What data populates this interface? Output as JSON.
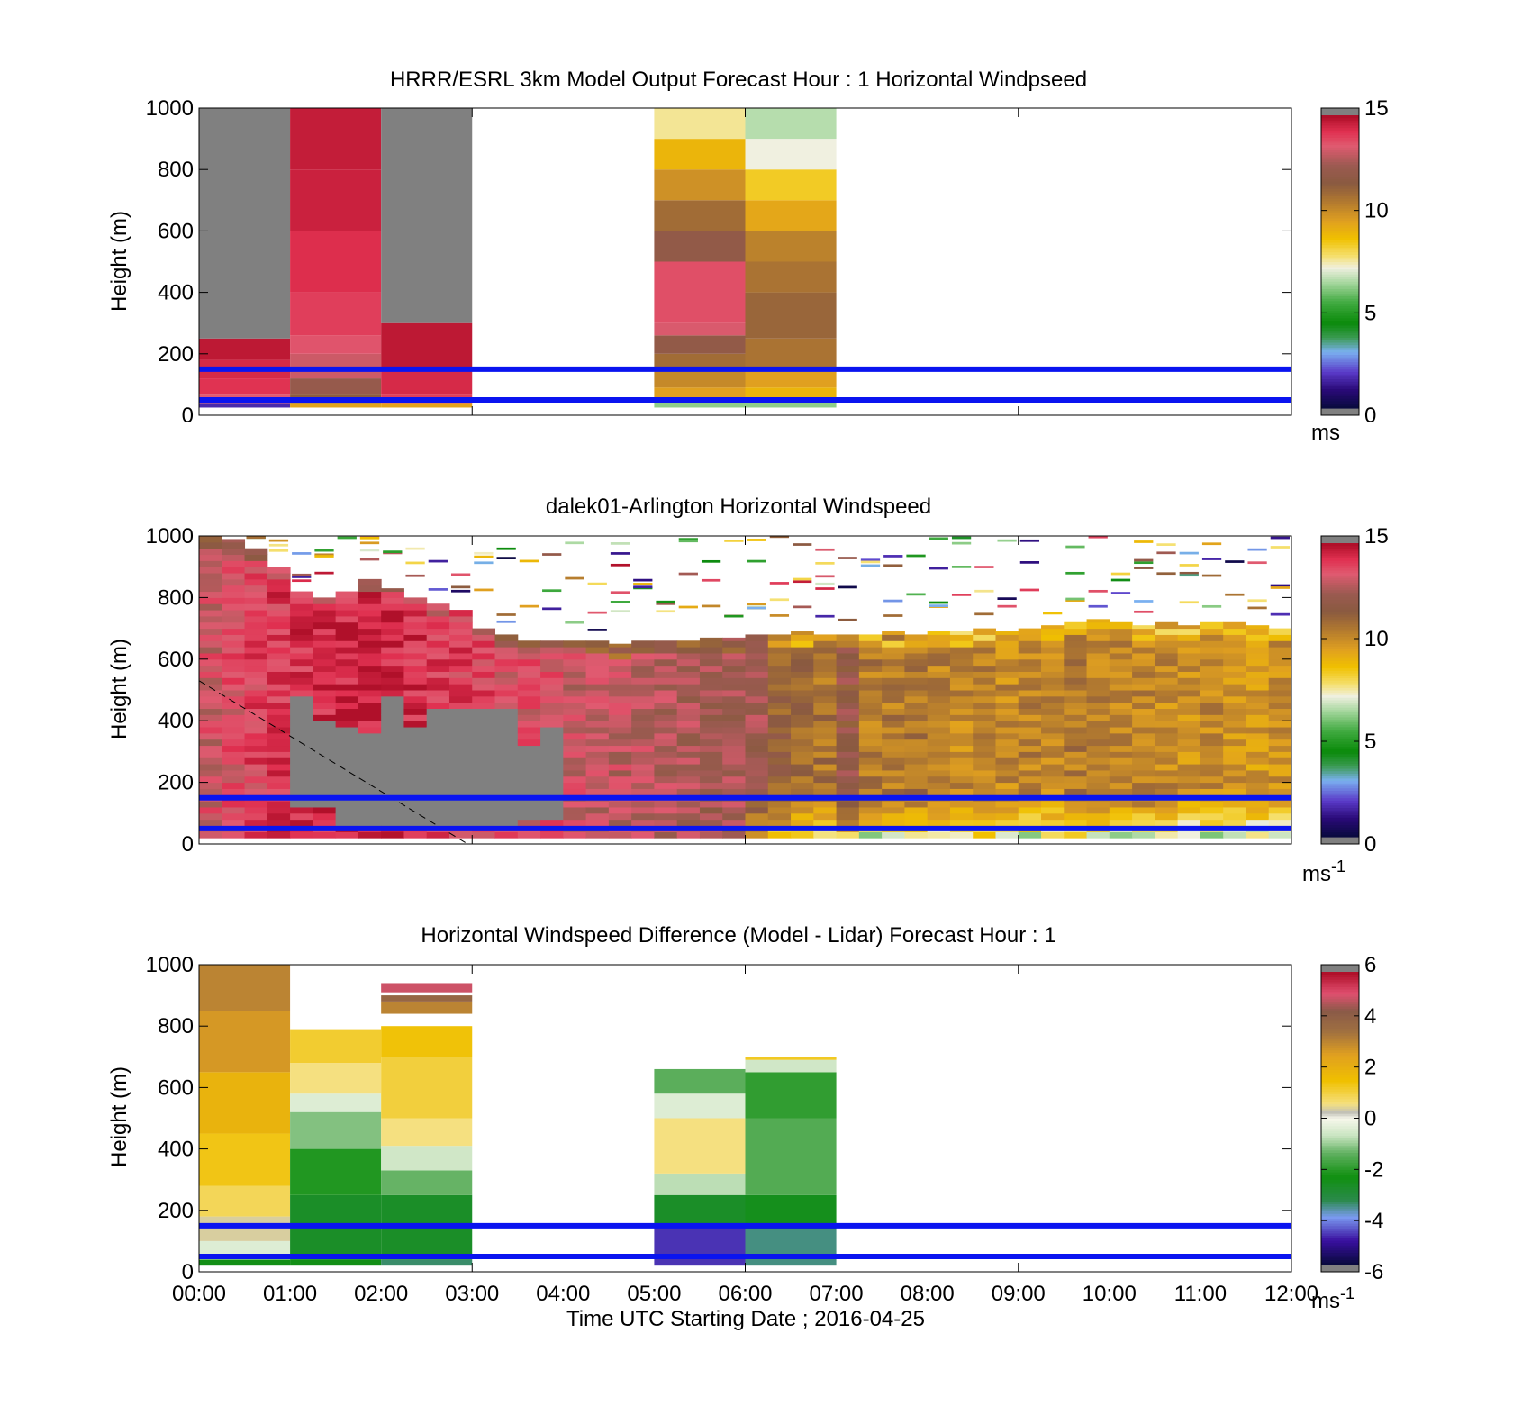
{
  "figure": {
    "x_tick_labels": [
      "00:00",
      "01:00",
      "02:00",
      "03:00",
      "04:00",
      "05:00",
      "06:00",
      "07:00",
      "08:00",
      "09:00",
      "10:00",
      "11:00",
      "12:00"
    ],
    "xlabel": "Time UTC  Starting Date ; 2016-04-25"
  },
  "chart_data": [
    {
      "type": "heatmap",
      "title": "HRRR/ESRL 3km Model Output   Forecast Hour : 1 Horizontal Windpseed",
      "xlabel": "",
      "ylabel": "Height (m)",
      "xlim": [
        0,
        12
      ],
      "ylim": [
        0,
        1000
      ],
      "y_ticks": [
        "0",
        "200",
        "400",
        "600",
        "800",
        "1000"
      ],
      "colorbar": {
        "min": 0,
        "max": 15,
        "ticks": [
          "0",
          "5",
          "10",
          "15"
        ],
        "unit": "ms"
      },
      "reference_lines_m": [
        50,
        150
      ],
      "columns": [
        {
          "x_start_h": 0,
          "x_end_h": 1,
          "segments": [
            {
              "from": 25,
              "to": 40,
              "value": 1.5
            },
            {
              "from": 40,
              "to": 70,
              "value": 13.5
            },
            {
              "from": 70,
              "to": 120,
              "value": 14.2
            },
            {
              "from": 120,
              "to": 180,
              "value": 14.4
            },
            {
              "from": 180,
              "to": 250,
              "value": 14.8
            },
            {
              "from": 250,
              "to": 1000,
              "value": "missing"
            }
          ]
        },
        {
          "x_start_h": 1,
          "x_end_h": 2,
          "segments": [
            {
              "from": 25,
              "to": 40,
              "value": 9.5
            },
            {
              "from": 40,
              "to": 70,
              "value": 11.5
            },
            {
              "from": 70,
              "to": 120,
              "value": 12.2
            },
            {
              "from": 120,
              "to": 200,
              "value": 13.2
            },
            {
              "from": 200,
              "to": 260,
              "value": 13.6
            },
            {
              "from": 260,
              "to": 400,
              "value": 14.0
            },
            {
              "from": 400,
              "to": 600,
              "value": 14.3
            },
            {
              "from": 600,
              "to": 800,
              "value": 14.6
            },
            {
              "from": 800,
              "to": 1000,
              "value": 14.7
            }
          ]
        },
        {
          "x_start_h": 2,
          "x_end_h": 3,
          "segments": [
            {
              "from": 25,
              "to": 40,
              "value": 9.5
            },
            {
              "from": 40,
              "to": 70,
              "value": 14.0
            },
            {
              "from": 70,
              "to": 150,
              "value": 14.4
            },
            {
              "from": 150,
              "to": 300,
              "value": 14.8
            },
            {
              "from": 300,
              "to": 1000,
              "value": "missing"
            }
          ]
        },
        {
          "x_start_h": 5,
          "x_end_h": 6,
          "segments": [
            {
              "from": 25,
              "to": 45,
              "value": 6.2
            },
            {
              "from": 45,
              "to": 90,
              "value": 9.6
            },
            {
              "from": 90,
              "to": 150,
              "value": 10.2
            },
            {
              "from": 150,
              "to": 200,
              "value": 11.0
            },
            {
              "from": 200,
              "to": 260,
              "value": 12.0
            },
            {
              "from": 260,
              "to": 300,
              "value": 13.4
            },
            {
              "from": 300,
              "to": 500,
              "value": 13.7
            },
            {
              "from": 500,
              "to": 600,
              "value": 12.0
            },
            {
              "from": 600,
              "to": 700,
              "value": 11.0
            },
            {
              "from": 700,
              "to": 800,
              "value": 10.0
            },
            {
              "from": 800,
              "to": 900,
              "value": 9.0
            },
            {
              "from": 900,
              "to": 1000,
              "value": 7.6
            }
          ]
        },
        {
          "x_start_h": 6,
          "x_end_h": 7,
          "segments": [
            {
              "from": 25,
              "to": 45,
              "value": 6.2
            },
            {
              "from": 45,
              "to": 90,
              "value": 9.0
            },
            {
              "from": 90,
              "to": 150,
              "value": 9.6
            },
            {
              "from": 150,
              "to": 250,
              "value": 10.8
            },
            {
              "from": 250,
              "to": 400,
              "value": 11.2
            },
            {
              "from": 400,
              "to": 500,
              "value": 10.8
            },
            {
              "from": 500,
              "to": 600,
              "value": 10.4
            },
            {
              "from": 600,
              "to": 700,
              "value": 9.4
            },
            {
              "from": 700,
              "to": 800,
              "value": 8.4
            },
            {
              "from": 800,
              "to": 900,
              "value": 7.2
            },
            {
              "from": 900,
              "to": 1000,
              "value": 6.6
            }
          ]
        }
      ]
    },
    {
      "type": "heatmap",
      "title": "dalek01-Arlington  Horizontal Windspeed",
      "xlabel": "",
      "ylabel": "Height (m)",
      "xlim": [
        0,
        12
      ],
      "ylim": [
        0,
        1000
      ],
      "y_ticks": [
        "0",
        "200",
        "400",
        "600",
        "800",
        "1000"
      ],
      "colorbar": {
        "min": 0,
        "max": 15,
        "ticks": [
          "0",
          "5",
          "10",
          "15"
        ],
        "unit": "ms",
        "unit_exponent": "-1"
      },
      "reference_lines_m": [
        50,
        150
      ],
      "dashed_line": {
        "x_h": [
          0,
          2.95
        ],
        "y_m": [
          530,
          0
        ]
      },
      "profile_interval_h": 0.25,
      "profiles": [
        {
          "t_h": 0.0,
          "top_m": 1000,
          "gap_from_m": null,
          "gap_to_m": null,
          "base_speed": 13.3
        },
        {
          "t_h": 0.25,
          "top_m": 990,
          "gap_from_m": null,
          "gap_to_m": null,
          "base_speed": 13.6
        },
        {
          "t_h": 0.5,
          "top_m": 960,
          "gap_from_m": null,
          "gap_to_m": null,
          "base_speed": 13.9
        },
        {
          "t_h": 0.75,
          "top_m": 900,
          "gap_from_m": null,
          "gap_to_m": null,
          "base_speed": 14.1
        },
        {
          "t_h": 1.0,
          "top_m": 820,
          "gap_from_m": 120,
          "gap_to_m": 480,
          "base_speed": 14.3
        },
        {
          "t_h": 1.25,
          "top_m": 800,
          "gap_from_m": 110,
          "gap_to_m": 400,
          "base_speed": 14.4
        },
        {
          "t_h": 1.5,
          "top_m": 820,
          "gap_from_m": 60,
          "gap_to_m": 380,
          "base_speed": 14.5
        },
        {
          "t_h": 1.75,
          "top_m": 860,
          "gap_from_m": 60,
          "gap_to_m": 360,
          "base_speed": 14.6
        },
        {
          "t_h": 2.0,
          "top_m": 830,
          "gap_from_m": 60,
          "gap_to_m": 470,
          "base_speed": 14.5
        },
        {
          "t_h": 2.25,
          "top_m": 800,
          "gap_from_m": 60,
          "gap_to_m": 380,
          "base_speed": 14.4
        },
        {
          "t_h": 2.5,
          "top_m": 780,
          "gap_from_m": 60,
          "gap_to_m": 430,
          "base_speed": 14.2
        },
        {
          "t_h": 2.75,
          "top_m": 760,
          "gap_from_m": 60,
          "gap_to_m": 440,
          "base_speed": 14.0
        },
        {
          "t_h": 3.0,
          "top_m": 700,
          "gap_from_m": 60,
          "gap_to_m": 430,
          "base_speed": 13.8
        },
        {
          "t_h": 3.25,
          "top_m": 680,
          "gap_from_m": 60,
          "gap_to_m": 440,
          "base_speed": 13.6
        },
        {
          "t_h": 3.5,
          "top_m": 660,
          "gap_from_m": 80,
          "gap_to_m": 320,
          "base_speed": 13.5
        },
        {
          "t_h": 3.75,
          "top_m": 660,
          "gap_from_m": 80,
          "gap_to_m": 380,
          "base_speed": 13.4
        },
        {
          "t_h": 4.0,
          "top_m": 660,
          "gap_from_m": null,
          "gap_to_m": null,
          "base_speed": 13.2
        },
        {
          "t_h": 4.25,
          "top_m": 660,
          "gap_from_m": null,
          "gap_to_m": null,
          "base_speed": 13.2
        },
        {
          "t_h": 4.5,
          "top_m": 650,
          "gap_from_m": null,
          "gap_to_m": null,
          "base_speed": 13.0
        },
        {
          "t_h": 4.75,
          "top_m": 660,
          "gap_from_m": null,
          "gap_to_m": null,
          "base_speed": 13.0
        },
        {
          "t_h": 5.0,
          "top_m": 660,
          "gap_from_m": null,
          "gap_to_m": null,
          "base_speed": 12.8
        },
        {
          "t_h": 5.25,
          "top_m": 660,
          "gap_from_m": null,
          "gap_to_m": null,
          "base_speed": 12.6
        },
        {
          "t_h": 5.5,
          "top_m": 670,
          "gap_from_m": null,
          "gap_to_m": null,
          "base_speed": 12.4
        },
        {
          "t_h": 5.75,
          "top_m": 670,
          "gap_from_m": null,
          "gap_to_m": null,
          "base_speed": 12.6
        },
        {
          "t_h": 6.0,
          "top_m": 680,
          "gap_from_m": null,
          "gap_to_m": null,
          "base_speed": 12.4
        },
        {
          "t_h": 6.25,
          "top_m": 680,
          "gap_from_m": null,
          "gap_to_m": null,
          "base_speed": 11.4
        },
        {
          "t_h": 6.5,
          "top_m": 690,
          "gap_from_m": null,
          "gap_to_m": null,
          "base_speed": 11.0
        },
        {
          "t_h": 6.75,
          "top_m": 680,
          "gap_from_m": null,
          "gap_to_m": null,
          "base_speed": 10.8
        },
        {
          "t_h": 7.0,
          "top_m": 680,
          "gap_from_m": null,
          "gap_to_m": null,
          "base_speed": 12.0
        },
        {
          "t_h": 7.25,
          "top_m": 680,
          "gap_from_m": null,
          "gap_to_m": null,
          "base_speed": 10.6
        },
        {
          "t_h": 7.5,
          "top_m": 690,
          "gap_from_m": null,
          "gap_to_m": null,
          "base_speed": 10.6
        },
        {
          "t_h": 7.75,
          "top_m": 680,
          "gap_from_m": null,
          "gap_to_m": null,
          "base_speed": 10.8
        },
        {
          "t_h": 8.0,
          "top_m": 690,
          "gap_from_m": null,
          "gap_to_m": null,
          "base_speed": 10.4
        },
        {
          "t_h": 8.25,
          "top_m": 690,
          "gap_from_m": null,
          "gap_to_m": null,
          "base_speed": 10.2
        },
        {
          "t_h": 8.5,
          "top_m": 700,
          "gap_from_m": null,
          "gap_to_m": null,
          "base_speed": 10.4
        },
        {
          "t_h": 8.75,
          "top_m": 690,
          "gap_from_m": null,
          "gap_to_m": null,
          "base_speed": 10.2
        },
        {
          "t_h": 9.0,
          "top_m": 700,
          "gap_from_m": null,
          "gap_to_m": null,
          "base_speed": 10.4
        },
        {
          "t_h": 9.25,
          "top_m": 710,
          "gap_from_m": null,
          "gap_to_m": null,
          "base_speed": 10.2
        },
        {
          "t_h": 9.5,
          "top_m": 720,
          "gap_from_m": null,
          "gap_to_m": null,
          "base_speed": 10.6
        },
        {
          "t_h": 9.75,
          "top_m": 730,
          "gap_from_m": null,
          "gap_to_m": null,
          "base_speed": 10.4
        },
        {
          "t_h": 10.0,
          "top_m": 720,
          "gap_from_m": null,
          "gap_to_m": null,
          "base_speed": 10.2
        },
        {
          "t_h": 10.25,
          "top_m": 710,
          "gap_from_m": null,
          "gap_to_m": null,
          "base_speed": 10.4
        },
        {
          "t_h": 10.5,
          "top_m": 720,
          "gap_from_m": null,
          "gap_to_m": null,
          "base_speed": 10.2
        },
        {
          "t_h": 10.75,
          "top_m": 710,
          "gap_from_m": null,
          "gap_to_m": null,
          "base_speed": 10.0
        },
        {
          "t_h": 11.0,
          "top_m": 720,
          "gap_from_m": null,
          "gap_to_m": null,
          "base_speed": 10.2
        },
        {
          "t_h": 11.25,
          "top_m": 720,
          "gap_from_m": null,
          "gap_to_m": null,
          "base_speed": 10.0
        },
        {
          "t_h": 11.5,
          "top_m": 710,
          "gap_from_m": null,
          "gap_to_m": null,
          "base_speed": 9.8
        },
        {
          "t_h": 11.75,
          "top_m": 700,
          "gap_from_m": null,
          "gap_to_m": null,
          "base_speed": 10.0
        }
      ]
    },
    {
      "type": "heatmap",
      "title": "Horizontal Windspeed Difference (Model - Lidar) Forecast Hour : 1",
      "xlabel": "Time UTC  Starting Date ; 2016-04-25",
      "ylabel": "Height (m)",
      "xlim": [
        0,
        12
      ],
      "ylim": [
        0,
        1000
      ],
      "y_ticks": [
        "0",
        "200",
        "400",
        "600",
        "800",
        "1000"
      ],
      "colorbar": {
        "min": -6,
        "max": 6,
        "ticks": [
          "-6",
          "-4",
          "-2",
          "0",
          "2",
          "4",
          "6"
        ],
        "unit": "ms",
        "unit_exponent": "-1"
      },
      "reference_lines_m": [
        50,
        150
      ],
      "columns": [
        {
          "x_start_h": 0,
          "x_end_h": 1,
          "segments": [
            {
              "from": 20,
              "to": 40,
              "value": -2.5
            },
            {
              "from": 40,
              "to": 100,
              "value": -0.4
            },
            {
              "from": 100,
              "to": 180,
              "value": 0.4
            },
            {
              "from": 180,
              "to": 280,
              "value": 0.9
            },
            {
              "from": 280,
              "to": 450,
              "value": 1.4
            },
            {
              "from": 450,
              "to": 650,
              "value": 2.0
            },
            {
              "from": 650,
              "to": 850,
              "value": 2.8
            },
            {
              "from": 850,
              "to": 1000,
              "value": 3.2
            }
          ]
        },
        {
          "x_start_h": 1,
          "x_end_h": 2,
          "segments": [
            {
              "from": 20,
              "to": 40,
              "value": -2.5
            },
            {
              "from": 40,
              "to": 250,
              "value": -2.8
            },
            {
              "from": 250,
              "to": 400,
              "value": -2.2
            },
            {
              "from": 400,
              "to": 520,
              "value": -1.2
            },
            {
              "from": 520,
              "to": 580,
              "value": -0.4
            },
            {
              "from": 580,
              "to": 680,
              "value": 0.6
            },
            {
              "from": 680,
              "to": 790,
              "value": 1.2
            }
          ]
        },
        {
          "x_start_h": 2,
          "x_end_h": 3,
          "segments": [
            {
              "from": 20,
              "to": 40,
              "value": -3.5
            },
            {
              "from": 40,
              "to": 250,
              "value": -2.8
            },
            {
              "from": 250,
              "to": 330,
              "value": -1.4
            },
            {
              "from": 330,
              "to": 410,
              "value": -0.6
            },
            {
              "from": 410,
              "to": 500,
              "value": 0.6
            },
            {
              "from": 500,
              "to": 700,
              "value": 1.1
            },
            {
              "from": 700,
              "to": 800,
              "value": 1.5
            },
            {
              "from": 840,
              "to": 880,
              "value": 3.2
            },
            {
              "from": 880,
              "to": 900,
              "value": 4.0
            },
            {
              "from": 910,
              "to": 940,
              "value": 5.0
            }
          ]
        },
        {
          "x_start_h": 5,
          "x_end_h": 6,
          "segments": [
            {
              "from": 20,
              "to": 150,
              "value": -4.8
            },
            {
              "from": 150,
              "to": 250,
              "value": -2.8
            },
            {
              "from": 250,
              "to": 320,
              "value": -0.8
            },
            {
              "from": 320,
              "to": 500,
              "value": 0.6
            },
            {
              "from": 500,
              "to": 580,
              "value": -0.4
            },
            {
              "from": 580,
              "to": 660,
              "value": -1.5
            }
          ]
        },
        {
          "x_start_h": 6,
          "x_end_h": 7,
          "segments": [
            {
              "from": 20,
              "to": 140,
              "value": -3.6
            },
            {
              "from": 140,
              "to": 250,
              "value": -2.6
            },
            {
              "from": 250,
              "to": 500,
              "value": -1.6
            },
            {
              "from": 500,
              "to": 650,
              "value": -2.0
            },
            {
              "from": 650,
              "to": 690,
              "value": -0.6
            },
            {
              "from": 690,
              "to": 700,
              "value": 1.3
            }
          ]
        }
      ]
    }
  ]
}
